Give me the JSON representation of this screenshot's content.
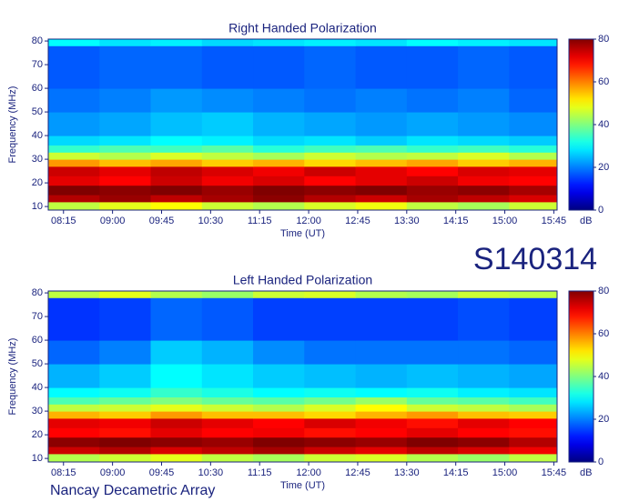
{
  "chart_data": [
    {
      "type": "heatmap",
      "title": "Right Handed Polarization",
      "xlabel": "Time (UT)",
      "ylabel": "Frequency (MHz)",
      "xlim": [
        481,
        948
      ],
      "ylim": [
        8.5,
        80.8
      ],
      "xticks": [
        {
          "value": 495,
          "label": "08:15"
        },
        {
          "value": 540,
          "label": "09:00"
        },
        {
          "value": 585,
          "label": "09:45"
        },
        {
          "value": 630,
          "label": "10:30"
        },
        {
          "value": 675,
          "label": "11:15"
        },
        {
          "value": 720,
          "label": "12:00"
        },
        {
          "value": 765,
          "label": "12:45"
        },
        {
          "value": 810,
          "label": "13:30"
        },
        {
          "value": 855,
          "label": "14:15"
        },
        {
          "value": 900,
          "label": "15:00"
        },
        {
          "value": 945,
          "label": "15:45"
        }
      ],
      "yticks": [
        10,
        20,
        30,
        40,
        50,
        60,
        70,
        80
      ],
      "x_bins": [
        481,
        528,
        575,
        622,
        669,
        716,
        763,
        810,
        857,
        904,
        948
      ],
      "y_bins": [
        8.5,
        12,
        15,
        19,
        23,
        27,
        30,
        33,
        36,
        40,
        50,
        60,
        78,
        80.8
      ],
      "z": [
        [
          45,
          48,
          50,
          46,
          44,
          47,
          49,
          45,
          43,
          46
        ],
        [
          76,
          78,
          75,
          77,
          79,
          76,
          74,
          77,
          75,
          73
        ],
        [
          80,
          79,
          80,
          78,
          80,
          79,
          80,
          78,
          79,
          77
        ],
        [
          72,
          70,
          74,
          71,
          73,
          70,
          72,
          74,
          71,
          70
        ],
        [
          74,
          72,
          75,
          73,
          71,
          74,
          72,
          70,
          73,
          72
        ],
        [
          58,
          55,
          57,
          54,
          56,
          53,
          55,
          57,
          54,
          56
        ],
        [
          46,
          44,
          47,
          45,
          43,
          46,
          44,
          45,
          47,
          44
        ],
        [
          34,
          36,
          35,
          37,
          33,
          35,
          36,
          34,
          35,
          33
        ],
        [
          27,
          28,
          30,
          29,
          27,
          28,
          26,
          28,
          27,
          26
        ],
        [
          22,
          23,
          25,
          26,
          24,
          23,
          22,
          23,
          22,
          21
        ],
        [
          19,
          20,
          22,
          21,
          20,
          19,
          20,
          19,
          20,
          18
        ],
        [
          17,
          18,
          18,
          17,
          17,
          18,
          17,
          17,
          18,
          17
        ],
        [
          30,
          28,
          29,
          27,
          28,
          29,
          28,
          30,
          29,
          28
        ]
      ],
      "colorbar": {
        "label": "dB",
        "lim": [
          0,
          80
        ],
        "ticks": [
          0,
          20,
          40,
          60,
          80
        ],
        "colormap": "jet"
      }
    },
    {
      "type": "heatmap",
      "title": "Left Handed Polarization",
      "xlabel": "Time (UT)",
      "ylabel": "Frequency (MHz)",
      "xlim": [
        481,
        948
      ],
      "ylim": [
        8.5,
        80.8
      ],
      "xticks": [
        {
          "value": 495,
          "label": "08:15"
        },
        {
          "value": 540,
          "label": "09:00"
        },
        {
          "value": 585,
          "label": "09:45"
        },
        {
          "value": 630,
          "label": "10:30"
        },
        {
          "value": 675,
          "label": "11:15"
        },
        {
          "value": 720,
          "label": "12:00"
        },
        {
          "value": 765,
          "label": "12:45"
        },
        {
          "value": 810,
          "label": "13:30"
        },
        {
          "value": 855,
          "label": "14:15"
        },
        {
          "value": 900,
          "label": "15:00"
        },
        {
          "value": 945,
          "label": "15:45"
        }
      ],
      "yticks": [
        10,
        20,
        30,
        40,
        50,
        60,
        70,
        80
      ],
      "x_bins": [
        481,
        528,
        575,
        622,
        669,
        716,
        763,
        810,
        857,
        904,
        948
      ],
      "y_bins": [
        8.5,
        12,
        15,
        19,
        23,
        27,
        30,
        33,
        36,
        40,
        50,
        60,
        78,
        80.8
      ],
      "z": [
        [
          44,
          46,
          48,
          45,
          43,
          46,
          47,
          44,
          42,
          45
        ],
        [
          74,
          76,
          73,
          75,
          77,
          74,
          72,
          75,
          73,
          71
        ],
        [
          79,
          80,
          79,
          78,
          80,
          79,
          78,
          80,
          79,
          76
        ],
        [
          70,
          69,
          72,
          70,
          71,
          69,
          70,
          72,
          70,
          69
        ],
        [
          72,
          71,
          74,
          72,
          70,
          73,
          71,
          69,
          72,
          70
        ],
        [
          56,
          54,
          58,
          55,
          55,
          53,
          56,
          58,
          55,
          54
        ],
        [
          45,
          46,
          48,
          46,
          44,
          47,
          50,
          46,
          45,
          43
        ],
        [
          36,
          38,
          40,
          38,
          37,
          39,
          42,
          38,
          37,
          35
        ],
        [
          30,
          31,
          34,
          32,
          30,
          31,
          30,
          31,
          29,
          28
        ],
        [
          24,
          26,
          30,
          28,
          26,
          25,
          24,
          25,
          24,
          23
        ],
        [
          18,
          20,
          26,
          24,
          21,
          19,
          19,
          19,
          19,
          18
        ],
        [
          14,
          15,
          18,
          17,
          15,
          15,
          15,
          15,
          16,
          15
        ],
        [
          45,
          48,
          44,
          42,
          46,
          47,
          44,
          43,
          46,
          45
        ]
      ],
      "colorbar": {
        "label": "dB",
        "lim": [
          0,
          80
        ],
        "ticks": [
          0,
          20,
          40,
          60,
          80
        ],
        "colormap": "jet"
      }
    }
  ],
  "observation_id": "S140314",
  "instrument": "Nancay Decametric Array"
}
